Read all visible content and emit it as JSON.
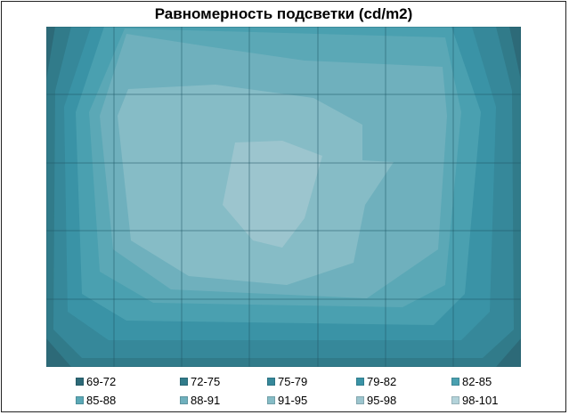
{
  "chart_data": {
    "type": "heatmap",
    "title": "Равномерность подсветки (cd/m2)",
    "xlabel": "",
    "ylabel": "",
    "grid": true,
    "legend_position": "bottom",
    "levels": [
      "69-72",
      "72-75",
      "75-79",
      "79-82",
      "82-85",
      "85-88",
      "88-91",
      "91-95",
      "95-98",
      "98-101"
    ],
    "colors": [
      "#2d6a78",
      "#317b8a",
      "#36889a",
      "#3a93a6",
      "#4aa0b0",
      "#5ba8b6",
      "#6fb0bd",
      "#86bcc6",
      "#9cc5ce",
      "#b3d3da"
    ],
    "rows": 5,
    "cols": 7,
    "values": [
      [
        71,
        77,
        84,
        87,
        86,
        80,
        72
      ],
      [
        76,
        86,
        93,
        95,
        93,
        88,
        79
      ],
      [
        77,
        87,
        96,
        99,
        95,
        89,
        80
      ],
      [
        76,
        84,
        92,
        94,
        92,
        86,
        79
      ],
      [
        70,
        76,
        82,
        84,
        82,
        77,
        71
      ]
    ]
  }
}
